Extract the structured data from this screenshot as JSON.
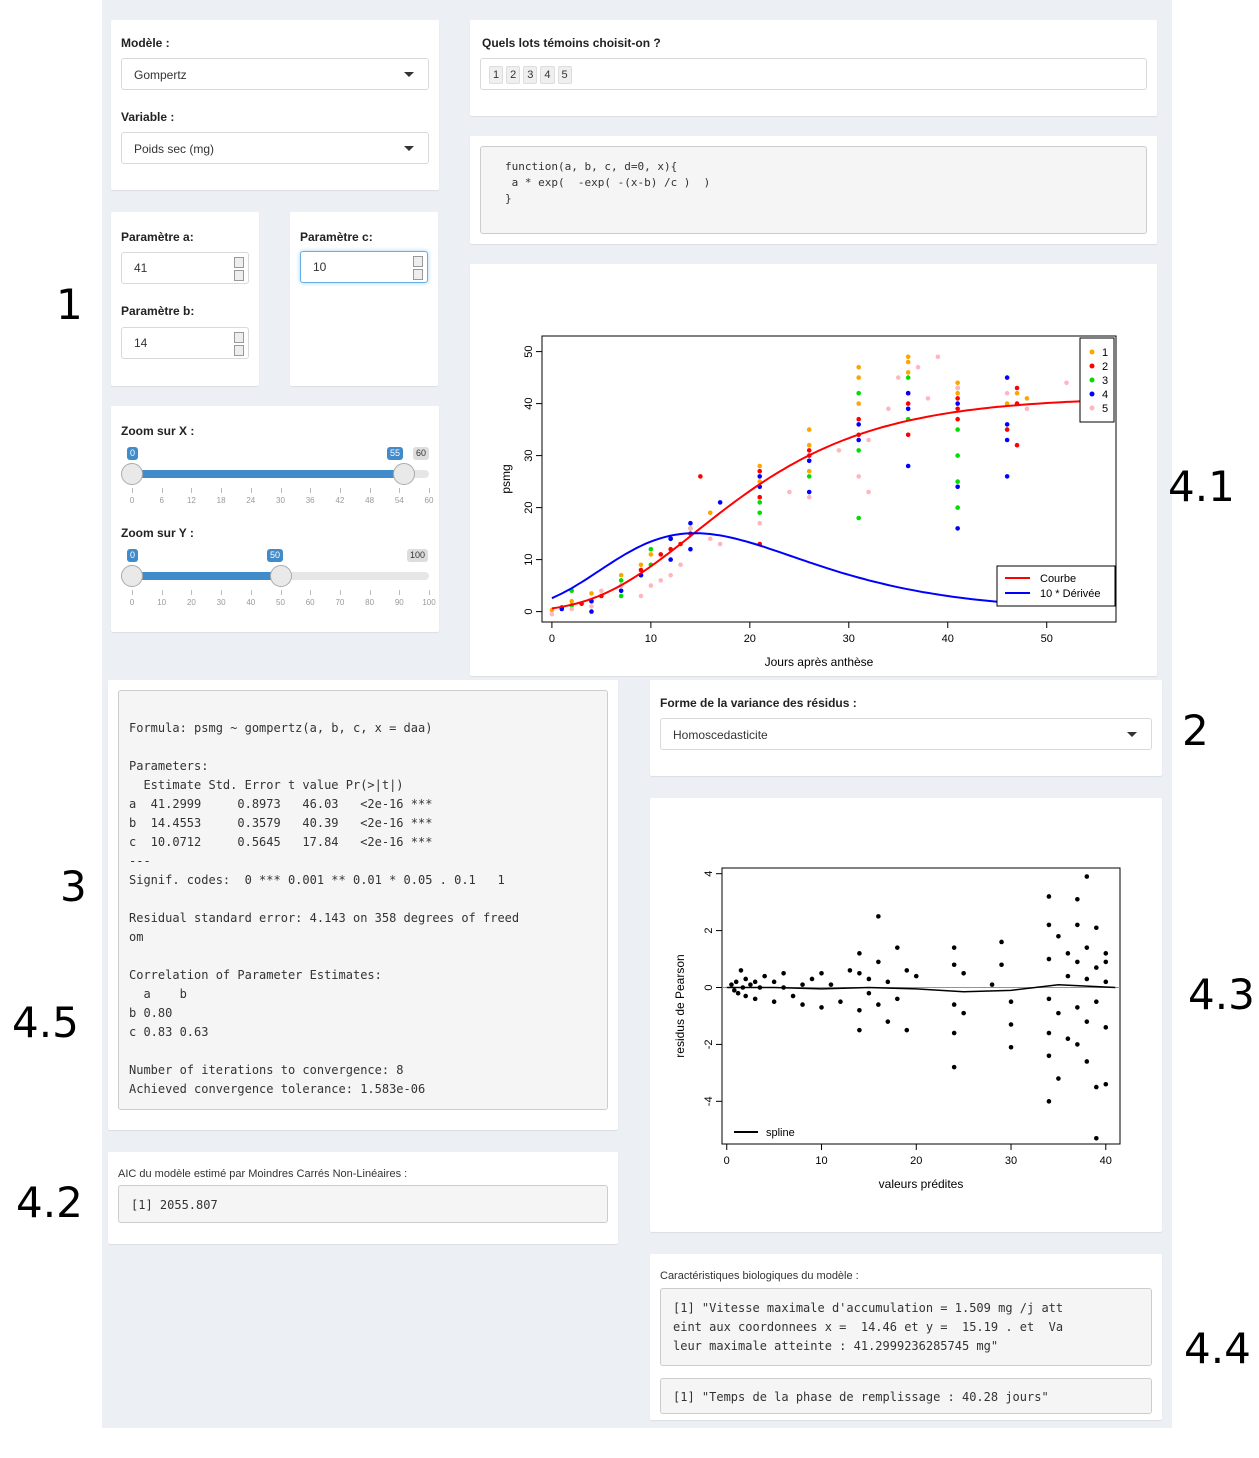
{
  "model": {
    "label": "Modèle :",
    "value": "Gompertz"
  },
  "variable": {
    "label": "Variable :",
    "value": "Poids sec (mg)"
  },
  "lots": {
    "label": "Quels lots témoins choisit-on ?",
    "tags": [
      "1",
      "2",
      "3",
      "4",
      "5"
    ]
  },
  "function_code": "function(a, b, c, d=0, x){\n a * exp(  -exp( -(x-b) /c )  )\n}",
  "params": {
    "a": {
      "label": "Paramètre a:",
      "value": "41"
    },
    "b": {
      "label": "Paramètre b:",
      "value": "14"
    },
    "c": {
      "label": "Paramètre c:",
      "value": "10"
    }
  },
  "zoom_x": {
    "label": "Zoom sur X :",
    "min": 0,
    "max": 60,
    "from": 0,
    "to": 55,
    "from_label": "0",
    "to_label": "55",
    "max_label": "60",
    "ticks": [
      "0",
      "6",
      "12",
      "18",
      "24",
      "30",
      "36",
      "42",
      "48",
      "54",
      "60"
    ]
  },
  "zoom_y": {
    "label": "Zoom sur Y :",
    "min": 0,
    "max": 100,
    "from": 0,
    "to": 50,
    "from_label": "0",
    "to_label": "50",
    "max_label": "100",
    "ticks": [
      "0",
      "10",
      "20",
      "30",
      "40",
      "50",
      "60",
      "70",
      "80",
      "90",
      "100"
    ]
  },
  "summary_text": "Formula: psmg ~ gompertz(a, b, c, x = daa)\n\nParameters:\n  Estimate Std. Error t value Pr(>|t|)\na  41.2999     0.8973   46.03   <2e-16 ***\nb  14.4553     0.3579   40.39   <2e-16 ***\nc  10.0712     0.5645   17.84   <2e-16 ***\n---\nSignif. codes:  0 *** 0.001 ** 0.01 * 0.05 . 0.1   1\n\nResidual standard error: 4.143 on 358 degrees of freed\nom\n\nCorrelation of Parameter Estimates:\n  a    b\nb 0.80\nc 0.83 0.63\n\nNumber of iterations to convergence: 8\nAchieved convergence tolerance: 1.583e-06",
  "aic": {
    "label": "AIC du modèle estimé par Moindres Carrés Non-Linéaires :",
    "value": "[1] 2055.807"
  },
  "variance": {
    "label": "Forme de la variance des résidus :",
    "value": "Homoscedasticite"
  },
  "bio": {
    "label": "Caractéristiques biologiques du modèle :",
    "text1": "[1] \"Vitesse maximale d'accumulation = 1.509 mg /j att\neint aux coordonnees x =  14.46 et y =  15.19 . et  Va\nleur maximale atteinte : 41.2999236285745 mg\"",
    "text2": "[1] \"Temps de la phase de remplissage : 40.28 jours\""
  },
  "annotations": [
    "1",
    "2",
    "3",
    "4.1",
    "4.2",
    "4.3",
    "4.4",
    "4.5"
  ],
  "chart_data": [
    {
      "type": "scatter",
      "xlabel": "Jours après anthèse",
      "ylabel": "psmg",
      "xlim": [
        -1,
        57
      ],
      "ylim": [
        -2,
        53
      ],
      "xticks": [
        0,
        10,
        20,
        30,
        40,
        50
      ],
      "yticks": [
        0,
        10,
        20,
        30,
        40,
        50
      ],
      "legend_groups": {
        "position": "top-right",
        "entries": [
          "1",
          "2",
          "3",
          "4",
          "5"
        ],
        "colors": [
          "#ffa500",
          "#ff0000",
          "#00dd00",
          "#0000ff",
          "#ffb6c1"
        ]
      },
      "legend_curves": {
        "position": "bottom-right",
        "entries": [
          "Courbe",
          "10 * Dérivée"
        ],
        "colors": [
          "#ff0000",
          "#0000ff"
        ]
      },
      "series": [
        {
          "name": "1",
          "color": "#ffa500",
          "points": [
            [
              0,
              0.3
            ],
            [
              2,
              2
            ],
            [
              4,
              3.5
            ],
            [
              7,
              7
            ],
            [
              9,
              9
            ],
            [
              10,
              11
            ],
            [
              12,
              14
            ],
            [
              14,
              16
            ],
            [
              16,
              19
            ],
            [
              21,
              25
            ],
            [
              21,
              28
            ],
            [
              26,
              27
            ],
            [
              26,
              32
            ],
            [
              26,
              35
            ],
            [
              31,
              40
            ],
            [
              31,
              45
            ],
            [
              31,
              47
            ],
            [
              36,
              46
            ],
            [
              36,
              48
            ],
            [
              36,
              49
            ],
            [
              41,
              42
            ],
            [
              41,
              44
            ],
            [
              46,
              40
            ],
            [
              47,
              42
            ],
            [
              48,
              41
            ]
          ]
        },
        {
          "name": "2",
          "color": "#ff0000",
          "points": [
            [
              1,
              0.8
            ],
            [
              3,
              1.5
            ],
            [
              5,
              3
            ],
            [
              7,
              5
            ],
            [
              9,
              8
            ],
            [
              11,
              11
            ],
            [
              12,
              12
            ],
            [
              13,
              13
            ],
            [
              14,
              15
            ],
            [
              15,
              26
            ],
            [
              21,
              13
            ],
            [
              21,
              22
            ],
            [
              21,
              27
            ],
            [
              26,
              30
            ],
            [
              26,
              31
            ],
            [
              31,
              34
            ],
            [
              31,
              37
            ],
            [
              36,
              34
            ],
            [
              36,
              40
            ],
            [
              36,
              42
            ],
            [
              41,
              37
            ],
            [
              41,
              39
            ],
            [
              41,
              41
            ],
            [
              46,
              35
            ],
            [
              47,
              32
            ],
            [
              47,
              40
            ],
            [
              47,
              43
            ]
          ]
        },
        {
          "name": "3",
          "color": "#00dd00",
          "points": [
            [
              2,
              1.2
            ],
            [
              2,
              4
            ],
            [
              4,
              2
            ],
            [
              7,
              3
            ],
            [
              7,
              6
            ],
            [
              9,
              7
            ],
            [
              10,
              9
            ],
            [
              10,
              12
            ],
            [
              12,
              14
            ],
            [
              14,
              16
            ],
            [
              21,
              19
            ],
            [
              21,
              21
            ],
            [
              26,
              26
            ],
            [
              31,
              18
            ],
            [
              31,
              31
            ],
            [
              31,
              42
            ],
            [
              36,
              37
            ],
            [
              36,
              45
            ],
            [
              41,
              20
            ],
            [
              41,
              25
            ],
            [
              41,
              30
            ],
            [
              41,
              35
            ],
            [
              41,
              43
            ]
          ]
        },
        {
          "name": "4",
          "color": "#0000ff",
          "points": [
            [
              1,
              0.5
            ],
            [
              4,
              0
            ],
            [
              4,
              2
            ],
            [
              7,
              4
            ],
            [
              9,
              7
            ],
            [
              12,
              10
            ],
            [
              12,
              14
            ],
            [
              14,
              12
            ],
            [
              14,
              17
            ],
            [
              17,
              21
            ],
            [
              21,
              24
            ],
            [
              21,
              26
            ],
            [
              26,
              23
            ],
            [
              26,
              29
            ],
            [
              31,
              33
            ],
            [
              31,
              36
            ],
            [
              36,
              28
            ],
            [
              36,
              39
            ],
            [
              36,
              42
            ],
            [
              41,
              16
            ],
            [
              41,
              24
            ],
            [
              41,
              40
            ],
            [
              46,
              26
            ],
            [
              46,
              33
            ],
            [
              46,
              36
            ],
            [
              46,
              45
            ]
          ]
        },
        {
          "name": "5",
          "color": "#ffb6c1",
          "points": [
            [
              0,
              -0.5
            ],
            [
              2,
              0.5
            ],
            [
              4,
              1
            ],
            [
              5,
              4
            ],
            [
              7,
              5
            ],
            [
              9,
              3
            ],
            [
              10,
              5
            ],
            [
              11,
              6
            ],
            [
              12,
              7
            ],
            [
              13,
              9
            ],
            [
              14,
              16
            ],
            [
              16,
              14
            ],
            [
              17,
              13
            ],
            [
              21,
              17
            ],
            [
              24,
              23
            ],
            [
              26,
              22
            ],
            [
              29,
              31
            ],
            [
              31,
              26
            ],
            [
              32,
              23
            ],
            [
              32,
              33
            ],
            [
              34,
              39
            ],
            [
              35,
              45
            ],
            [
              37,
              47
            ],
            [
              38,
              41
            ],
            [
              39,
              49
            ],
            [
              41,
              43
            ],
            [
              46,
              42
            ],
            [
              48,
              39
            ],
            [
              52,
              44
            ]
          ]
        }
      ],
      "curves": [
        {
          "name": "Courbe",
          "color": "#ff0000",
          "a": 41.2999,
          "b": 14.4553,
          "c": 10.0712,
          "kind": "gompertz"
        },
        {
          "name": "10 * Dérivée",
          "color": "#0000ff",
          "a": 41.2999,
          "b": 14.4553,
          "c": 10.0712,
          "kind": "derivative_x10"
        }
      ]
    },
    {
      "type": "scatter",
      "xlabel": "valeurs prédites",
      "ylabel": "residus de Pearson",
      "xlim": [
        -0.5,
        41.5
      ],
      "ylim": [
        -5.5,
        4.2
      ],
      "xticks": [
        0,
        10,
        20,
        30,
        40
      ],
      "yticks": [
        -4,
        -2,
        0,
        2,
        4
      ],
      "legend": {
        "position": "bottom-left",
        "entries": [
          "spline"
        ]
      },
      "series": [
        {
          "name": "residus",
          "color": "#000000",
          "points": [
            [
              0.5,
              0.1
            ],
            [
              0.8,
              -0.1
            ],
            [
              1,
              0.2
            ],
            [
              1.2,
              -0.2
            ],
            [
              1.5,
              0.6
            ],
            [
              1.7,
              0
            ],
            [
              2,
              -0.3
            ],
            [
              2,
              0.3
            ],
            [
              2.5,
              0.1
            ],
            [
              3,
              -0.4
            ],
            [
              3,
              0.2
            ],
            [
              3.5,
              0
            ],
            [
              4,
              0.4
            ],
            [
              5,
              -0.5
            ],
            [
              5,
              0.2
            ],
            [
              6,
              0
            ],
            [
              6,
              0.5
            ],
            [
              7,
              -0.3
            ],
            [
              8,
              0.1
            ],
            [
              8,
              -0.6
            ],
            [
              9,
              0.3
            ],
            [
              10,
              -0.7
            ],
            [
              10,
              0.5
            ],
            [
              11,
              0.1
            ],
            [
              12,
              -0.5
            ],
            [
              13,
              0.6
            ],
            [
              14,
              -0.8
            ],
            [
              14,
              0.5
            ],
            [
              14,
              1.2
            ],
            [
              14,
              -1.5
            ],
            [
              15,
              0.3
            ],
            [
              15,
              -0.2
            ],
            [
              16,
              2.5
            ],
            [
              16,
              0.9
            ],
            [
              16,
              -0.6
            ],
            [
              17,
              0.2
            ],
            [
              17,
              -1.2
            ],
            [
              18,
              1.4
            ],
            [
              18,
              -0.4
            ],
            [
              19,
              0.6
            ],
            [
              19,
              -1.5
            ],
            [
              20,
              0.4
            ],
            [
              24,
              1.4
            ],
            [
              24,
              0.8
            ],
            [
              24,
              -0.6
            ],
            [
              24,
              -1.6
            ],
            [
              24,
              -2.8
            ],
            [
              25,
              0.5
            ],
            [
              25,
              -0.9
            ],
            [
              28,
              0.1
            ],
            [
              29,
              1.6
            ],
            [
              29,
              0.8
            ],
            [
              30,
              -0.5
            ],
            [
              30,
              -1.3
            ],
            [
              30,
              -2.1
            ],
            [
              34,
              3.2
            ],
            [
              34,
              2.2
            ],
            [
              34,
              1
            ],
            [
              34,
              -0.4
            ],
            [
              34,
              -1.6
            ],
            [
              34,
              -2.4
            ],
            [
              34,
              -4
            ],
            [
              35,
              1.8
            ],
            [
              35,
              -0.9
            ],
            [
              35,
              -3.2
            ],
            [
              36,
              1.2
            ],
            [
              36,
              0.4
            ],
            [
              36,
              -1.8
            ],
            [
              37,
              3.1
            ],
            [
              37,
              2.2
            ],
            [
              37,
              0.9
            ],
            [
              37,
              -0.7
            ],
            [
              37,
              -2
            ],
            [
              38,
              3.9
            ],
            [
              38,
              1.4
            ],
            [
              38,
              0.3
            ],
            [
              38,
              -1.2
            ],
            [
              38,
              -2.6
            ],
            [
              39,
              2.1
            ],
            [
              39,
              0.7
            ],
            [
              39,
              -0.5
            ],
            [
              39,
              -3.5
            ],
            [
              39,
              -5.3
            ],
            [
              40,
              1.2
            ],
            [
              40,
              0.2
            ],
            [
              40,
              -1.4
            ],
            [
              40,
              -3.4
            ],
            [
              40,
              0.9
            ]
          ]
        }
      ],
      "spline": {
        "name": "spline",
        "color": "#000000",
        "points": [
          [
            0,
            0
          ],
          [
            5,
            0
          ],
          [
            10,
            -0.05
          ],
          [
            15,
            0
          ],
          [
            20,
            -0.05
          ],
          [
            25,
            -0.15
          ],
          [
            30,
            -0.1
          ],
          [
            35,
            0.1
          ],
          [
            38,
            0.05
          ],
          [
            41,
            0
          ]
        ]
      },
      "hline": {
        "y": 0,
        "color": "#ff6666"
      }
    }
  ]
}
